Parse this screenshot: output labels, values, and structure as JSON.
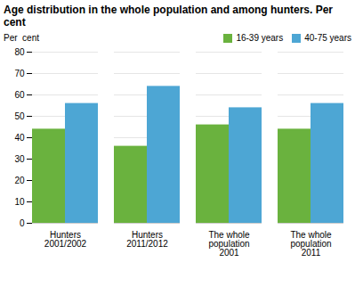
{
  "chart_data": {
    "type": "bar",
    "title": "Age distribution in the whole population and among hunters. Per cent",
    "ylabel": "Per  cent",
    "categories": [
      "Hunters\n2001/2002",
      "Hunters\n2011/2012",
      "The whole\npopulation\n2001",
      "The whole\npopulation\n2011"
    ],
    "series": [
      {
        "name": "16-39 years",
        "color": "#6ab23e",
        "values": [
          44,
          36,
          46,
          44
        ]
      },
      {
        "name": "40-75 years",
        "color": "#4da6d4",
        "values": [
          56,
          64,
          54,
          56
        ]
      }
    ],
    "ylim": [
      0,
      80
    ],
    "yticks": [
      0,
      10,
      20,
      30,
      40,
      50,
      60,
      70,
      80
    ],
    "grid": true,
    "legend": "upper right"
  }
}
